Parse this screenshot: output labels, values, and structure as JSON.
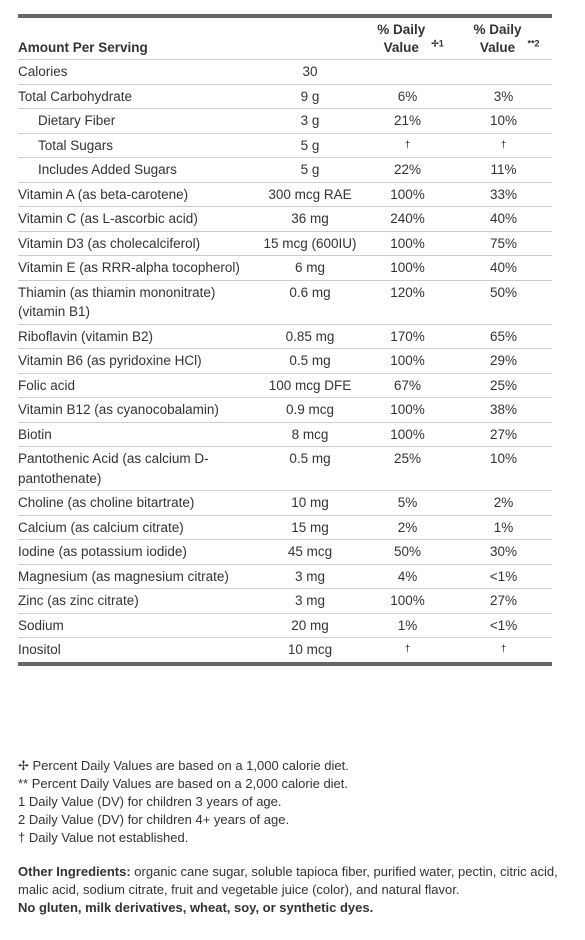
{
  "header": {
    "amount_per_serving": "Amount Per Serving",
    "dv1": "% Daily Value",
    "dv1_mark": "✢1",
    "dv2": "% Daily Value",
    "dv2_mark": "**2"
  },
  "rows": [
    {
      "name": "Calories",
      "amount": "30",
      "dv1": "",
      "dv2": ""
    },
    {
      "name": "Total Carbohydrate",
      "amount": "9 g",
      "dv1": "6%",
      "dv2": "3%"
    },
    {
      "name": "Dietary Fiber",
      "amount": "3 g",
      "dv1": "21%",
      "dv2": "10%",
      "indent": true
    },
    {
      "name": "Total Sugars",
      "amount": "5 g",
      "dv1": "†",
      "dv2": "†",
      "indent": true
    },
    {
      "name": "Includes Added Sugars",
      "amount": "5 g",
      "dv1": "22%",
      "dv2": "11%",
      "indent": true
    },
    {
      "name": "Vitamin A (as beta-carotene)",
      "amount": "300 mcg RAE",
      "dv1": "100%",
      "dv2": "33%"
    },
    {
      "name": "Vitamin C (as L-ascorbic acid)",
      "amount": "36 mg",
      "dv1": "240%",
      "dv2": "40%"
    },
    {
      "name": "Vitamin D3 (as cholecalciferol)",
      "amount": "15 mcg (600IU)",
      "dv1": "100%",
      "dv2": "75%"
    },
    {
      "name": "Vitamin E (as RRR-alpha tocopherol)",
      "amount": "6 mg",
      "dv1": "100%",
      "dv2": "40%"
    },
    {
      "name": "Thiamin (as thiamin mononitrate) (vitamin B1)",
      "amount": "0.6 mg",
      "dv1": "120%",
      "dv2": "50%"
    },
    {
      "name": "Riboflavin (vitamin B2)",
      "amount": "0.85 mg",
      "dv1": "170%",
      "dv2": "65%"
    },
    {
      "name": "Vitamin B6 (as pyridoxine HCl)",
      "amount": "0.5 mg",
      "dv1": "100%",
      "dv2": "29%"
    },
    {
      "name": "Folic acid",
      "amount": "100 mcg DFE",
      "dv1": "67%",
      "dv2": "25%"
    },
    {
      "name": "Vitamin B12 (as cyanocobalamin)",
      "amount": "0.9 mcg",
      "dv1": "100%",
      "dv2": "38%"
    },
    {
      "name": "Biotin",
      "amount": "8 mcg",
      "dv1": "100%",
      "dv2": "27%"
    },
    {
      "name": "Pantothenic Acid (as calcium D-pantothenate)",
      "amount": "0.5 mg",
      "dv1": "25%",
      "dv2": "10%"
    },
    {
      "name": "Choline (as choline bitartrate)",
      "amount": "10 mg",
      "dv1": "5%",
      "dv2": "2%"
    },
    {
      "name": "Calcium (as calcium citrate)",
      "amount": "15 mg",
      "dv1": "2%",
      "dv2": "1%"
    },
    {
      "name": "Iodine (as potassium iodide)",
      "amount": "45 mcg",
      "dv1": "50%",
      "dv2": "30%"
    },
    {
      "name": "Magnesium (as magnesium citrate)",
      "amount": "3 mg",
      "dv1": "4%",
      "dv2": "<1%"
    },
    {
      "name": "Zinc (as zinc citrate)",
      "amount": "3 mg",
      "dv1": "100%",
      "dv2": "27%"
    },
    {
      "name": "Sodium",
      "amount": "20 mg",
      "dv1": "1%",
      "dv2": "<1%"
    },
    {
      "name": "Inositol",
      "amount": "10 mcg",
      "dv1": "†",
      "dv2": "†"
    }
  ],
  "footnotes": [
    "✢ Percent Daily Values are based on a 1,000 calorie diet.",
    "** Percent Daily Values are based on a 2,000 calorie diet.",
    "1 Daily Value (DV) for children 3 years of age.",
    "2 Daily Value (DV) for children 4+ years of age.",
    "† Daily Value not established."
  ],
  "other_ingredients": {
    "label": "Other Ingredients:",
    "text": " organic cane sugar, soluble tapioca fiber, purified water, pectin, citric acid, malic acid, sodium citrate, fruit and vegetable juice (color), and natural flavor."
  },
  "allergen": "No gluten, milk derivatives, wheat, soy, or synthetic dyes."
}
